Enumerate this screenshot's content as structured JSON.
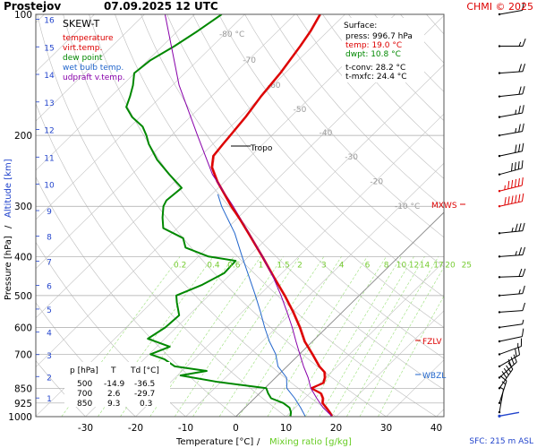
{
  "header": {
    "station": "Prostejov",
    "datetime": "07.09.2025 12 UTC",
    "credit": "CHMI © 2025"
  },
  "legend": {
    "title": "SKEW-T",
    "items": [
      {
        "label": "temperature",
        "color": "#dd0000"
      },
      {
        "label": "virt.temp.",
        "color": "#dd0000"
      },
      {
        "label": "dew point",
        "color": "#008800"
      },
      {
        "label": "wet bulb temp.",
        "color": "#2266cc"
      },
      {
        "label": "udpraft v.temp.",
        "color": "#8800aa"
      }
    ]
  },
  "surface": {
    "title": "Surface:",
    "press": "press: 996.7 hPa",
    "temp": "temp: 19.0 °C",
    "dwpt": "dwpt: 10.8 °C",
    "tconv": "t-conv: 28.2 °C",
    "tmxfc": "t-mxfc: 24.4 °C"
  },
  "table": {
    "headers": [
      "p [hPa]",
      "T",
      "Td [°C]"
    ],
    "rows": [
      [
        "500",
        "-14.9",
        "-36.5"
      ],
      [
        "700",
        "2.6",
        "-29.7"
      ],
      [
        "850",
        "9.3",
        "0.3"
      ]
    ]
  },
  "markers": {
    "tropo": "Tropo",
    "mxws": "MXWS",
    "fzlv": "FZLV",
    "wbzl": "WBZL"
  },
  "footer": {
    "sfc": "SFC: 215 m ASL"
  },
  "chart_data": {
    "type": "line",
    "title": "SKEW-T",
    "xlabel": "Temperature [°C]",
    "xlabel_sep": "/",
    "xlabel2": "Mixing ratio [g/kg]",
    "ylabel": "Pressure [hPa]",
    "ylabel_sep": "/",
    "ylabel2": "Altitude [km]",
    "pressure_ticks": [
      100,
      200,
      300,
      400,
      500,
      600,
      700,
      850,
      925,
      1000
    ],
    "temperature_ticks": [
      -30,
      -20,
      -10,
      0,
      10,
      20,
      30,
      40
    ],
    "altitude_ticks": [
      1,
      2,
      3,
      4,
      5,
      6,
      7,
      8,
      9,
      10,
      11,
      12,
      13,
      14,
      15,
      16
    ],
    "isotherm_labels": [
      "-80 °C",
      "-70",
      "-60",
      "-50",
      "-40",
      "-30",
      "-20",
      "-10 °C"
    ],
    "mixing_ratio_labels": [
      "0.2",
      "0.4",
      "0.6",
      "1",
      "1.5",
      "2",
      "3",
      "4",
      "6",
      "8",
      "10",
      "12",
      "14",
      "17",
      "20",
      "25"
    ],
    "series": [
      {
        "name": "temperature",
        "color": "#dd0000",
        "points": [
          [
            996.7,
            19.0
          ],
          [
            975,
            17.8
          ],
          [
            950,
            16.2
          ],
          [
            925,
            14.5
          ],
          [
            900,
            13.6
          ],
          [
            875,
            12.2
          ],
          [
            850,
            9.3
          ],
          [
            825,
            10.6
          ],
          [
            800,
            9.8
          ],
          [
            775,
            8.6
          ],
          [
            750,
            6.4
          ],
          [
            700,
            2.6
          ],
          [
            650,
            -1.6
          ],
          [
            600,
            -5.4
          ],
          [
            550,
            -9.8
          ],
          [
            500,
            -14.9
          ],
          [
            450,
            -20.8
          ],
          [
            400,
            -27.3
          ],
          [
            350,
            -34.8
          ],
          [
            325,
            -39.0
          ],
          [
            300,
            -43.7
          ],
          [
            280,
            -47.5
          ],
          [
            260,
            -51.6
          ],
          [
            240,
            -55.5
          ],
          [
            225,
            -57.5
          ],
          [
            210,
            -58.0
          ],
          [
            200,
            -58.3
          ],
          [
            180,
            -59.0
          ],
          [
            160,
            -60.1
          ],
          [
            140,
            -61.0
          ],
          [
            120,
            -62.5
          ],
          [
            110,
            -63.5
          ],
          [
            100,
            -65.0
          ]
        ]
      },
      {
        "name": "dew point",
        "color": "#008800",
        "points": [
          [
            996.7,
            10.8
          ],
          [
            975,
            10.1
          ],
          [
            950,
            8.9
          ],
          [
            925,
            6.7
          ],
          [
            900,
            3.3
          ],
          [
            875,
            1.7
          ],
          [
            850,
            0.3
          ],
          [
            820,
            -10.6
          ],
          [
            790,
            -19.4
          ],
          [
            770,
            -15.1
          ],
          [
            750,
            -22.4
          ],
          [
            720,
            -25.9
          ],
          [
            700,
            -29.7
          ],
          [
            670,
            -27.4
          ],
          [
            640,
            -33.4
          ],
          [
            600,
            -32.2
          ],
          [
            560,
            -31.9
          ],
          [
            520,
            -35.0
          ],
          [
            500,
            -36.5
          ],
          [
            470,
            -33.5
          ],
          [
            440,
            -31.5
          ],
          [
            410,
            -31.7
          ],
          [
            400,
            -38.0
          ],
          [
            380,
            -44.4
          ],
          [
            360,
            -46.8
          ],
          [
            340,
            -52.8
          ],
          [
            320,
            -55.1
          ],
          [
            300,
            -57.2
          ],
          [
            290,
            -57.8
          ],
          [
            270,
            -57.3
          ],
          [
            250,
            -62.5
          ],
          [
            230,
            -67.9
          ],
          [
            210,
            -72.8
          ],
          [
            200,
            -75.0
          ],
          [
            190,
            -77.6
          ],
          [
            180,
            -81.6
          ],
          [
            170,
            -84.8
          ],
          [
            160,
            -86.2
          ],
          [
            150,
            -87.9
          ],
          [
            140,
            -90.1
          ],
          [
            130,
            -89.5
          ],
          [
            120,
            -87.6
          ],
          [
            110,
            -86.0
          ],
          [
            100,
            -84.6
          ]
        ]
      },
      {
        "name": "wet bulb temp.",
        "color": "#2266cc",
        "points": [
          [
            996.7,
            13.7
          ],
          [
            950,
            11.1
          ],
          [
            900,
            8.0
          ],
          [
            850,
            4.4
          ],
          [
            800,
            2.2
          ],
          [
            750,
            -1.8
          ],
          [
            700,
            -4.7
          ],
          [
            650,
            -8.6
          ],
          [
            600,
            -12.4
          ],
          [
            550,
            -16.3
          ],
          [
            500,
            -20.7
          ],
          [
            450,
            -25.7
          ],
          [
            400,
            -31.3
          ],
          [
            350,
            -37.5
          ],
          [
            300,
            -45.6
          ],
          [
            280,
            -48.8
          ]
        ]
      },
      {
        "name": "udpraft v.temp.",
        "color": "#8800aa",
        "points": [
          [
            996.7,
            19.0
          ],
          [
            950,
            15.6
          ],
          [
            900,
            12.4
          ],
          [
            850,
            9.2
          ],
          [
            800,
            6.5
          ],
          [
            750,
            3.3
          ],
          [
            700,
            0.1
          ],
          [
            650,
            -3.3
          ],
          [
            600,
            -6.9
          ],
          [
            550,
            -11.0
          ],
          [
            500,
            -15.6
          ],
          [
            450,
            -20.9
          ],
          [
            400,
            -27.2
          ],
          [
            350,
            -34.6
          ],
          [
            300,
            -43.3
          ],
          [
            250,
            -53.9
          ],
          [
            200,
            -64.8
          ],
          [
            150,
            -78.7
          ],
          [
            100,
            -95.9
          ]
        ]
      }
    ]
  }
}
